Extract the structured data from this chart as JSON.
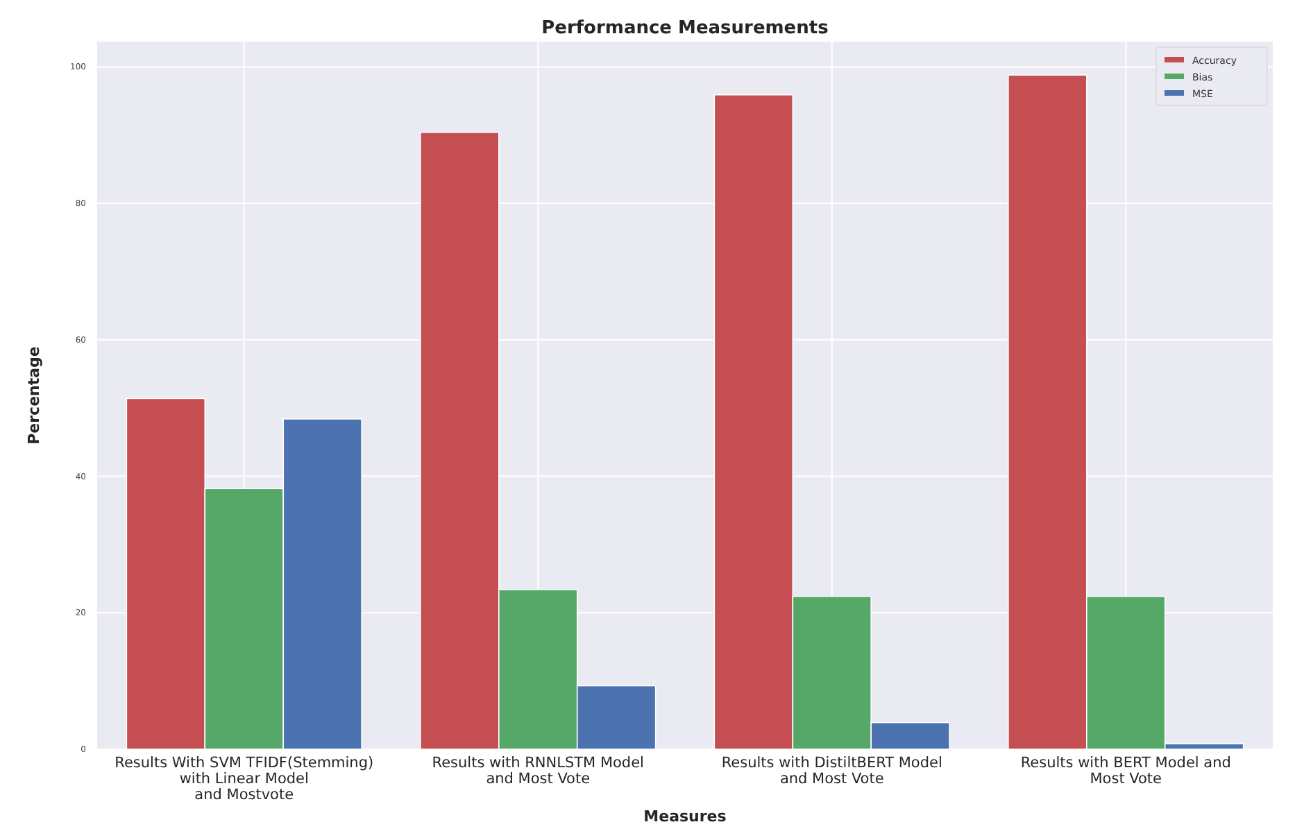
{
  "chart_data": {
    "type": "bar",
    "title": "Performance Measurements",
    "xlabel": "Measures",
    "ylabel": "Percentage",
    "categories": [
      "Results With SVM TFIDF(Stemming)\nwith Linear Model\nand Mostvote",
      "Results with RNNLSTM Model\nand Most Vote",
      "Results with DistiltBERT Model\nand Most Vote",
      "Results with BERT Model and\nMost Vote"
    ],
    "series": [
      {
        "name": "Accuracy",
        "color": "#c44e52",
        "values": [
          51.4,
          90.4,
          95.9,
          98.8
        ]
      },
      {
        "name": "Bias",
        "color": "#55a868",
        "values": [
          38.2,
          23.4,
          22.4,
          22.4
        ]
      },
      {
        "name": "MSE",
        "color": "#4c72b0",
        "values": [
          48.4,
          9.3,
          3.9,
          0.8
        ]
      }
    ],
    "ylim": [
      0,
      103.7
    ],
    "yticks": [
      0,
      20,
      40,
      60,
      80,
      100
    ],
    "grid": true,
    "legend": "top right"
  }
}
